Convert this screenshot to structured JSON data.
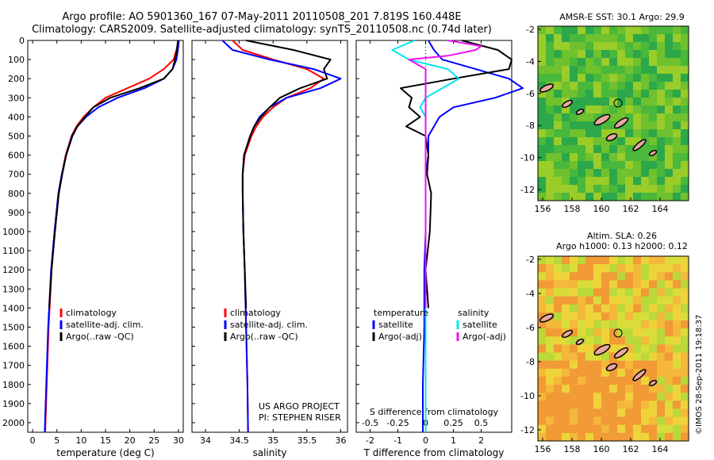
{
  "header": {
    "line1": "Argo profile: AO 5901360_167 07-May-2011 20110508_201 7.819S 160.448E",
    "line2": "Climatology: CARS2009. Satellite-adjusted climatology: synTS_20110508.nc (0.74d later)"
  },
  "maps": {
    "sst_title": "AMSR-E SST: 30.1  Argo: 29.9",
    "sla_title1": "Altim. SLA: 0.26",
    "sla_title2": "Argo h1000: 0.13 h2000: 0.12",
    "lon_ticks": [
      "156",
      "158",
      "160",
      "162",
      "164"
    ],
    "lat_ticks": [
      "-2",
      "-4",
      "-6",
      "-8",
      "-10",
      "-12"
    ],
    "sst_palette": [
      "#2ca84a",
      "#4ab83a",
      "#6fc12e",
      "#9acc2a"
    ],
    "sla_palette": [
      "#b9d93a",
      "#d8dd3a",
      "#efd33a",
      "#f4b83a",
      "#f19a36"
    ]
  },
  "stamp": "©IMOS 28-Sep-2011 19:18:37",
  "project": {
    "line1": "US ARGO PROJECT",
    "line2": "PI: STEPHEN RISER"
  },
  "colors": {
    "climatology": "#ff0000",
    "satellite": "#0000ff",
    "argo": "#000000",
    "t_sat": "#0000ff",
    "s_sat": "#00e5ee",
    "s_argo": "#ee11ee"
  },
  "chart_data": [
    {
      "type": "line",
      "xlabel": "temperature (deg C)",
      "ylim": [
        2050,
        0
      ],
      "xlim": [
        -1,
        31
      ],
      "x_ticks": [
        "0",
        "5",
        "10",
        "15",
        "20",
        "25",
        "30"
      ],
      "y_ticks": [
        "0",
        "100",
        "200",
        "300",
        "400",
        "500",
        "600",
        "700",
        "800",
        "900",
        "1000",
        "1100",
        "1200",
        "1300",
        "1400",
        "1500",
        "1600",
        "1700",
        "1800",
        "1900",
        "2000"
      ],
      "legend": [
        "climatology",
        "satellite-adj. clim.",
        "Argo(..raw -QC)"
      ],
      "series": [
        {
          "name": "climatology",
          "depth": [
            0,
            50,
            100,
            150,
            200,
            250,
            300,
            350,
            400,
            450,
            500,
            600,
            700,
            800,
            1000,
            1200,
            1500,
            1800,
            2050
          ],
          "values": [
            30.0,
            29.6,
            29.0,
            27.0,
            24.0,
            19.5,
            15.0,
            12.5,
            10.5,
            9.0,
            8.0,
            6.8,
            6.0,
            5.3,
            4.5,
            3.9,
            3.3,
            2.9,
            2.6
          ]
        },
        {
          "name": "satellite-adj. clim.",
          "depth": [
            0,
            50,
            100,
            150,
            200,
            250,
            300,
            350,
            400,
            450,
            500,
            600,
            700,
            800,
            1000,
            1200,
            1500,
            1800,
            2050
          ],
          "values": [
            30.1,
            29.9,
            29.6,
            28.8,
            27.0,
            23.0,
            17.5,
            13.5,
            11.0,
            9.2,
            8.1,
            6.9,
            6.0,
            5.3,
            4.5,
            3.8,
            3.2,
            2.8,
            2.5
          ]
        },
        {
          "name": "Argo(..raw -QC)",
          "depth": [
            0,
            50,
            100,
            150,
            200,
            250,
            300,
            350,
            400,
            450,
            500,
            600,
            700,
            800,
            1000,
            1200,
            1400
          ],
          "values": [
            29.9,
            29.7,
            29.3,
            28.8,
            27.0,
            22.0,
            16.0,
            12.5,
            10.8,
            9.2,
            8.2,
            6.9,
            6.1,
            5.4,
            4.6,
            3.9,
            3.4
          ]
        }
      ]
    },
    {
      "type": "line",
      "xlabel": "salinity",
      "ylim": [
        2050,
        0
      ],
      "xlim": [
        33.8,
        36.1
      ],
      "x_ticks": [
        "34",
        "34.5",
        "35",
        "35.5",
        "36"
      ],
      "legend": [
        "climatology",
        "satellite-adj. clim.",
        "Argo(..raw -QC)"
      ],
      "series": [
        {
          "name": "climatology",
          "depth": [
            0,
            50,
            100,
            150,
            200,
            250,
            300,
            350,
            400,
            450,
            500,
            600,
            700,
            800,
            1000,
            1200,
            1500,
            1800,
            2050
          ],
          "values": [
            34.4,
            34.55,
            35.0,
            35.5,
            35.75,
            35.55,
            35.2,
            35.0,
            34.85,
            34.75,
            34.68,
            34.58,
            34.55,
            34.55,
            34.56,
            34.58,
            34.6,
            34.62,
            34.63
          ]
        },
        {
          "name": "satellite-adj. clim.",
          "depth": [
            0,
            50,
            100,
            150,
            200,
            250,
            300,
            350,
            400,
            450,
            500,
            600,
            700,
            800,
            1000,
            1200,
            1500,
            1800,
            2050
          ],
          "values": [
            34.25,
            34.4,
            34.95,
            35.6,
            36.0,
            35.7,
            35.2,
            34.95,
            34.8,
            34.72,
            34.66,
            34.57,
            34.55,
            34.55,
            34.56,
            34.58,
            34.6,
            34.62,
            34.63
          ]
        },
        {
          "name": "Argo(..raw -QC)",
          "depth": [
            0,
            50,
            100,
            150,
            200,
            250,
            300,
            350,
            400,
            450,
            500,
            600,
            700,
            800,
            1000,
            1200,
            1400
          ],
          "values": [
            34.6,
            35.3,
            35.85,
            35.75,
            35.8,
            35.4,
            35.1,
            34.95,
            34.82,
            34.72,
            34.66,
            34.57,
            34.55,
            34.55,
            34.56,
            34.58,
            34.6
          ]
        }
      ]
    },
    {
      "type": "line",
      "xlabel": "T difference from climatology",
      "xlabel_top": "S difference from climatology",
      "ylim": [
        2050,
        0
      ],
      "xlim": [
        -2.5,
        3.1
      ],
      "x_ticks": [
        "-2",
        "-1",
        "0",
        "1",
        "2"
      ],
      "x2_ticks": [
        "-0.5",
        "-0.25",
        "0",
        "0.25",
        "0.5"
      ],
      "legend_t_title": "temperature",
      "legend_s_title": "salinity",
      "legend": [
        "satellite",
        "Argo(-adj)",
        "satellite",
        "Argo(-adj)"
      ],
      "series": [
        {
          "name": "satellite",
          "quantity": "T",
          "depth": [
            0,
            50,
            100,
            150,
            200,
            250,
            300,
            350,
            400,
            500,
            600,
            700,
            800,
            1000,
            1200,
            1500,
            1800,
            2050
          ],
          "values": [
            0.1,
            0.3,
            0.6,
            1.8,
            3.0,
            3.5,
            2.5,
            1.0,
            0.5,
            0.1,
            0.1,
            0.0,
            0.0,
            0.0,
            -0.05,
            -0.05,
            -0.1,
            -0.1
          ]
        },
        {
          "name": "Argo(-adj)",
          "quantity": "T",
          "depth": [
            0,
            50,
            100,
            150,
            200,
            250,
            300,
            350,
            400,
            450,
            500,
            600,
            700,
            800,
            1000,
            1200,
            1400
          ],
          "values": [
            1.3,
            2.6,
            3.1,
            3.0,
            1.0,
            -0.9,
            -0.5,
            -0.6,
            -0.2,
            -0.7,
            0.0,
            0.1,
            0.05,
            0.2,
            0.15,
            0.0,
            0.1
          ]
        },
        {
          "name": "satellite",
          "quantity": "S",
          "depth": [
            0,
            50,
            100,
            150,
            200,
            250,
            300,
            350,
            400,
            500,
            600,
            700,
            800,
            1000,
            1200,
            1500,
            1800,
            2050
          ],
          "values": [
            -0.1,
            -0.3,
            -0.15,
            0.2,
            0.3,
            0.15,
            0.0,
            -0.05,
            0.0,
            0.0,
            0.0,
            0.0,
            0.0,
            0.0,
            0.0,
            0.0,
            0.0,
            0.0
          ]
        },
        {
          "name": "Argo(-adj)",
          "quantity": "S",
          "depth": [
            0,
            30,
            50,
            80,
            100,
            150,
            200,
            250,
            300,
            350,
            400,
            500,
            600,
            800,
            1000,
            1200,
            1400
          ],
          "values": [
            0.2,
            0.5,
            0.45,
            0.2,
            -0.15,
            0.0,
            0.0,
            0.0,
            0.0,
            0.0,
            0.0,
            0.0,
            0.0,
            0.0,
            0.0,
            0.0,
            0.0
          ]
        }
      ]
    }
  ]
}
